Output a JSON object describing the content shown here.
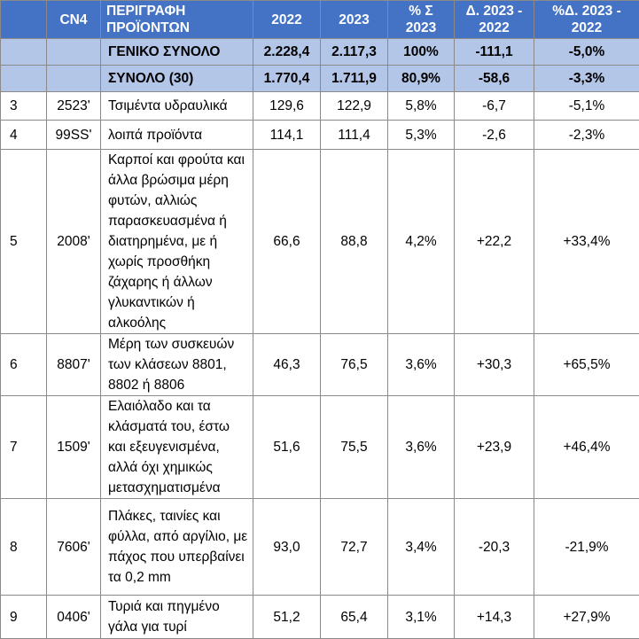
{
  "headers": {
    "num": "",
    "cn4": "CN4",
    "description": "ΠΕΡΙΓΡΑΦΗ ΠΡΟΪΟΝΤΩΝ",
    "y2022": "2022",
    "y2023": "2023",
    "share": "% Σ 2023",
    "delta": "Δ. 2023 - 2022",
    "pct_delta": "%Δ. 2023 - 2022"
  },
  "summary_rows": [
    {
      "num": "",
      "cn4": "",
      "description": "ΓΕΝΙΚΟ ΣΥΝΟΛΟ",
      "y2022": "2.228,4",
      "y2023": "2.117,3",
      "share": "100%",
      "delta": "-111,1",
      "pct_delta": "-5,0%"
    },
    {
      "num": "",
      "cn4": "",
      "description": "ΣΥΝΟΛΟ (30)",
      "y2022": "1.770,4",
      "y2023": "1.711,9",
      "share": "80,9%",
      "delta": "-58,6",
      "pct_delta": "-3,3%"
    }
  ],
  "rows": [
    {
      "num": "3",
      "cn4": "2523'",
      "description": "Τσιμέντα υδραυλικά",
      "y2022": "129,6",
      "y2023": "122,9",
      "share": "5,8%",
      "delta": "-6,7",
      "pct_delta": "-5,1%"
    },
    {
      "num": "4",
      "cn4": "99SS'",
      "description": "λοιπά προϊόντα",
      "y2022": "114,1",
      "y2023": "111,4",
      "share": "5,3%",
      "delta": "-2,6",
      "pct_delta": "-2,3%"
    },
    {
      "num": "5",
      "cn4": "2008'",
      "description": "Καρποί και φρούτα και άλλα βρώσιμα μέρη φυτών, αλλιώς παρασκευασμένα ή διατηρημένα, με ή χωρίς προσθήκη ζάχαρης ή άλλων γλυκαντικών ή αλκοόλης",
      "y2022": "66,6",
      "y2023": "88,8",
      "share": "4,2%",
      "delta": "+22,2",
      "pct_delta": "+33,4%"
    },
    {
      "num": "6",
      "cn4": "8807'",
      "description": "Μέρη των συσκευών των κλάσεων 8801, 8802 ή 8806",
      "y2022": "46,3",
      "y2023": "76,5",
      "share": "3,6%",
      "delta": "+30,3",
      "pct_delta": "+65,5%"
    },
    {
      "num": "7",
      "cn4": "1509'",
      "description": "Ελαιόλαδο και τα κλάσματά του, έστω και εξευγενισμένα, αλλά όχι χημικώς μετασχηματισμένα",
      "y2022": "51,6",
      "y2023": "75,5",
      "share": "3,6%",
      "delta": "+23,9",
      "pct_delta": "+46,4%"
    },
    {
      "num": "8",
      "cn4": "7606'",
      "description": "Πλάκες, ταινίες και φύλλα, από αργίλιο, με πάχος που υπερβαίνει τα 0,2 mm",
      "y2022": "93,0",
      "y2023": "72,7",
      "share": "3,4%",
      "delta": "-20,3",
      "pct_delta": "-21,9%"
    },
    {
      "num": "9",
      "cn4": "0406'",
      "description": "Τυριά και πηγμένο γάλα για τυρί",
      "y2022": "51,2",
      "y2023": "65,4",
      "share": "3,1%",
      "delta": "+14,3",
      "pct_delta": "+27,9%"
    }
  ]
}
